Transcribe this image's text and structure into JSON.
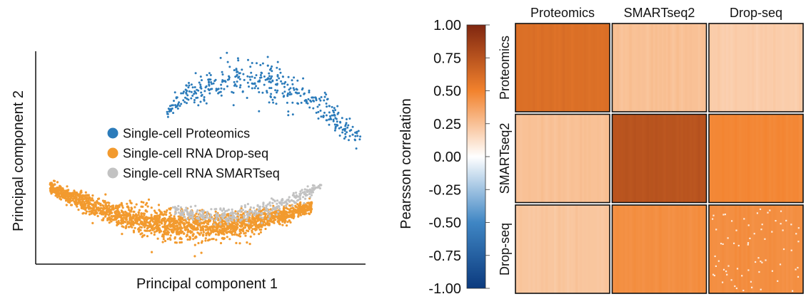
{
  "chart_data": [
    {
      "type": "scatter",
      "title": "",
      "xlabel": "Principal component 1",
      "ylabel": "Principal component 2",
      "xlim": [
        0,
        1
      ],
      "ylim": [
        0,
        1
      ],
      "grid": false,
      "legend_position": "center-left",
      "series": [
        {
          "name": "Single-cell Proteomics",
          "color": "#2b7bba",
          "n_points": 420,
          "distribution": "arc",
          "arc": {
            "x_range": [
              0.4,
              1.0
            ],
            "y_peak": 0.88,
            "peak_x": 0.62,
            "y_left": 0.72,
            "y_right": 0.58,
            "spread": 0.12
          }
        },
        {
          "name": "Single-cell RNA Drop-seq",
          "color": "#f29a2e",
          "n_points": 2200,
          "distribution": "arc",
          "arc": {
            "x_range": [
              0.04,
              0.85
            ],
            "y_min": 0.17,
            "min_x": 0.5,
            "y_left": 0.36,
            "y_right": 0.27,
            "spread": 0.08
          }
        },
        {
          "name": "Single-cell RNA SMARTseq",
          "color": "#c2c2c2",
          "n_points": 350,
          "distribution": "arc",
          "arc": {
            "x_range": [
              0.42,
              0.88
            ],
            "y_min": 0.22,
            "min_x": 0.55,
            "y_left": 0.25,
            "y_right": 0.37,
            "spread": 0.05
          }
        }
      ]
    },
    {
      "type": "heatmap",
      "title": "",
      "colorbar_label": "Pearsson correlation",
      "colorbar_ticks": [
        "1.00",
        "0.75",
        "0.50",
        "0.25",
        "0.00",
        "-0.25",
        "-0.50",
        "-0.75",
        "-1.00"
      ],
      "vlim": [
        -1,
        1
      ],
      "colormap": {
        "stops": [
          {
            "value": -1.0,
            "color": "#0b3a7e"
          },
          {
            "value": -0.5,
            "color": "#3f86c4"
          },
          {
            "value": 0.0,
            "color": "#ffffff"
          },
          {
            "value": 0.5,
            "color": "#f2822d"
          },
          {
            "value": 1.0,
            "color": "#7f2610"
          }
        ]
      },
      "column_labels": [
        "Proteomics",
        "SMARTseq2",
        "Drop-seq"
      ],
      "row_labels": [
        "Proteomics",
        "SMARTseq2",
        "Drop-seq"
      ],
      "block_values": [
        [
          0.6,
          0.25,
          0.2
        ],
        [
          0.25,
          0.75,
          0.48
        ],
        [
          0.23,
          0.45,
          0.45
        ]
      ]
    }
  ]
}
